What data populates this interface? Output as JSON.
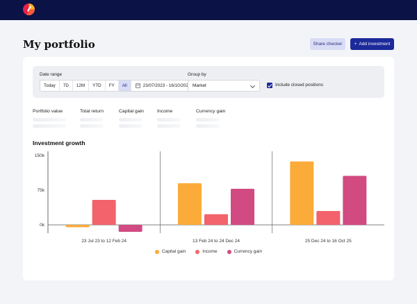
{
  "header": {
    "logo": "brand-logo"
  },
  "page": {
    "title": "My portfolio"
  },
  "actions": {
    "share_label": "Share checker",
    "add_label": "Add investment",
    "add_icon": "+"
  },
  "filters": {
    "date_range_label": "Date range",
    "ranges": [
      "Today",
      "7D",
      "12M",
      "YTD",
      "FY",
      "All"
    ],
    "active_range": "All",
    "date_value": "23/07/2023 - 16/10/2025",
    "group_by_label": "Group by",
    "group_by_value": "Market",
    "include_closed_label": "Include closed positions",
    "include_closed_checked": true
  },
  "stats": [
    "Portfolio value",
    "Total return",
    "Capital gain",
    "Income",
    "Currency gain"
  ],
  "chart_title": "Investment growth",
  "colors": {
    "capital": "#fbab3a",
    "income": "#f2636b",
    "currency": "#d24a82",
    "primary": "#1d2a9a"
  },
  "chart_data": {
    "type": "bar",
    "categories": [
      "23 Jul 23 to 12 Feb 24",
      "13 Feb 24 to 24 Dec 24",
      "25 Dec 24 to 16 Oct 25"
    ],
    "series": [
      {
        "name": "Capital gain",
        "values": [
          -5000,
          90000,
          137000
        ]
      },
      {
        "name": "Income",
        "values": [
          54000,
          23000,
          30000
        ]
      },
      {
        "name": "Currency gain",
        "values": [
          -15000,
          78000,
          106000
        ]
      }
    ],
    "yticks": [
      0,
      75000,
      150000
    ],
    "ytick_labels": [
      "0k",
      "75k",
      "150k"
    ],
    "ylim": [
      -20000,
      160000
    ],
    "grid": false,
    "legend": "bottom"
  }
}
